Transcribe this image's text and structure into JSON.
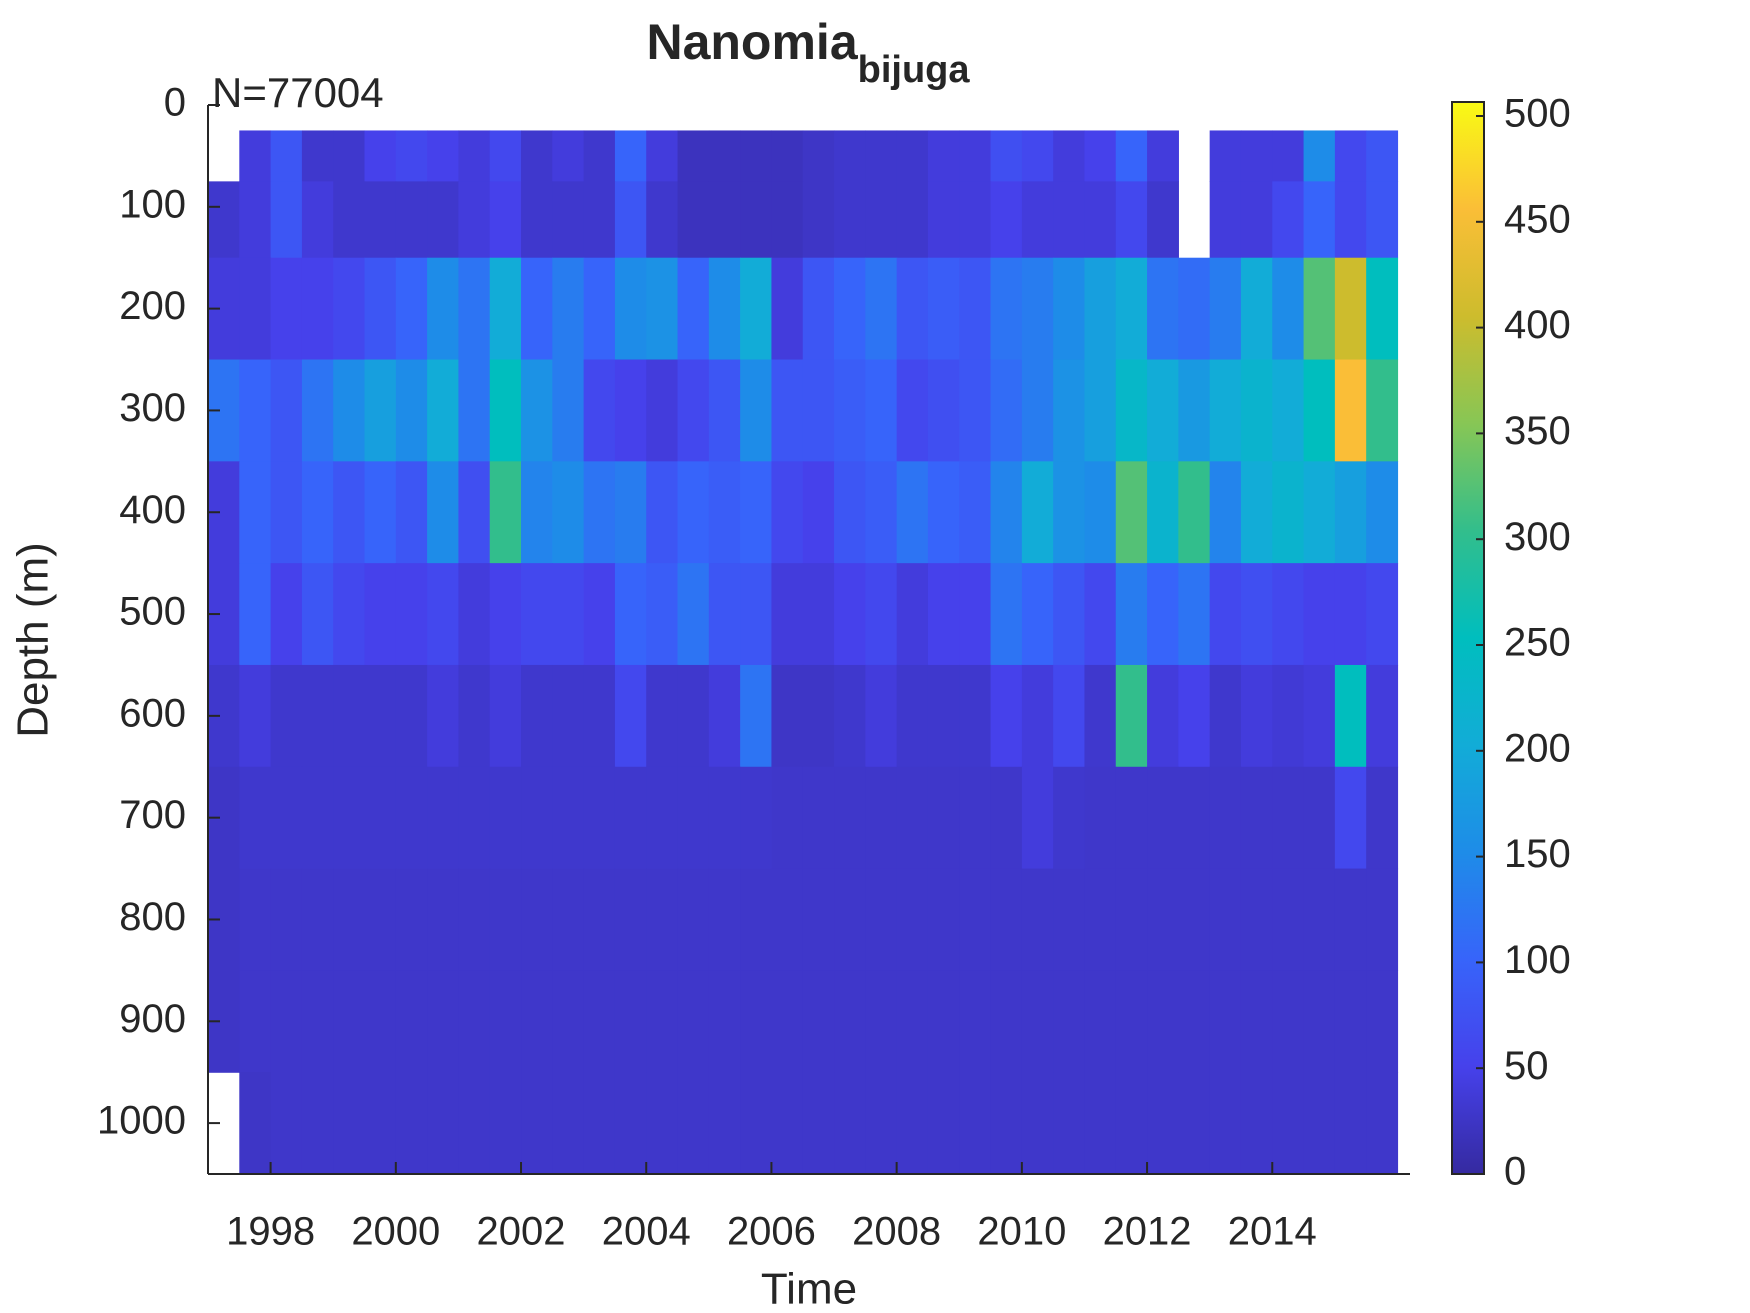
{
  "chart_data": {
    "type": "heatmap",
    "title": "Nanomia",
    "title_subscript": "bijuga",
    "annotation": "N=77004",
    "x_label": "Time",
    "y_label": "Depth (m)",
    "xlim": [
      1997,
      2016.2
    ],
    "xticks": [
      1998,
      2000,
      2002,
      2004,
      2006,
      2008,
      2010,
      2012,
      2014
    ],
    "ylim": [
      0,
      1050
    ],
    "yticks": [
      0,
      100,
      200,
      300,
      400,
      500,
      600,
      700,
      800,
      900,
      1000
    ],
    "y_reversed": true,
    "colormap": "parula",
    "clim": [
      0,
      500
    ],
    "cticks": [
      0,
      50,
      100,
      150,
      200,
      250,
      300,
      350,
      400,
      450,
      500
    ],
    "x_bins": [
      1997,
      1997.5,
      1998,
      1998.5,
      1999,
      1999.5,
      2000,
      2000.5,
      2001,
      2001.5,
      2002,
      2002.5,
      2003,
      2003.5,
      2004,
      2004.5,
      2005,
      2005.5,
      2006,
      2006.5,
      2007,
      2007.5,
      2008,
      2008.5,
      2009,
      2009.5,
      2010,
      2010.5,
      2011,
      2011.5,
      2012,
      2012.5,
      2013,
      2013.5,
      2014,
      2014.5,
      2015,
      2015.5,
      2016
    ],
    "y_bins": [
      25,
      75,
      150,
      250,
      350,
      450,
      550,
      650,
      750,
      850,
      950,
      1050
    ],
    "values": [
      [
        null,
        40,
        80,
        30,
        30,
        50,
        60,
        50,
        40,
        60,
        30,
        40,
        30,
        100,
        40,
        20,
        20,
        20,
        20,
        25,
        30,
        30,
        30,
        40,
        40,
        70,
        60,
        40,
        50,
        100,
        40,
        null,
        40,
        40,
        40,
        150,
        60,
        80
      ],
      [
        30,
        40,
        80,
        40,
        30,
        30,
        30,
        30,
        40,
        50,
        30,
        30,
        30,
        80,
        30,
        20,
        20,
        20,
        20,
        25,
        30,
        30,
        30,
        40,
        40,
        50,
        40,
        40,
        40,
        60,
        30,
        null,
        40,
        40,
        60,
        100,
        60,
        80
      ],
      [
        40,
        40,
        50,
        50,
        60,
        80,
        100,
        150,
        120,
        200,
        100,
        130,
        100,
        150,
        160,
        100,
        150,
        200,
        40,
        80,
        100,
        120,
        80,
        90,
        80,
        120,
        130,
        150,
        180,
        200,
        120,
        110,
        130,
        200,
        150,
        320,
        400,
        250
      ],
      [
        120,
        100,
        80,
        120,
        150,
        180,
        150,
        200,
        120,
        250,
        160,
        130,
        60,
        50,
        40,
        60,
        80,
        150,
        80,
        80,
        90,
        100,
        60,
        70,
        80,
        110,
        130,
        160,
        180,
        230,
        200,
        170,
        200,
        220,
        200,
        250,
        450,
        300
      ],
      [
        40,
        100,
        80,
        100,
        80,
        100,
        80,
        150,
        70,
        300,
        140,
        150,
        120,
        130,
        80,
        100,
        90,
        100,
        60,
        50,
        80,
        90,
        120,
        100,
        90,
        140,
        200,
        160,
        150,
        320,
        220,
        300,
        140,
        200,
        220,
        200,
        180,
        150
      ],
      [
        40,
        100,
        50,
        80,
        60,
        50,
        50,
        60,
        40,
        50,
        60,
        60,
        50,
        100,
        90,
        120,
        80,
        80,
        40,
        40,
        50,
        60,
        40,
        50,
        50,
        120,
        100,
        80,
        60,
        130,
        100,
        120,
        60,
        70,
        60,
        50,
        50,
        60
      ],
      [
        30,
        40,
        30,
        30,
        30,
        30,
        30,
        40,
        30,
        40,
        30,
        30,
        30,
        60,
        30,
        30,
        40,
        120,
        25,
        25,
        30,
        40,
        30,
        30,
        30,
        50,
        40,
        60,
        30,
        300,
        40,
        50,
        30,
        40,
        35,
        40,
        250,
        40
      ],
      [
        25,
        30,
        30,
        30,
        30,
        30,
        30,
        30,
        30,
        30,
        30,
        30,
        30,
        30,
        30,
        30,
        30,
        30,
        28,
        28,
        28,
        28,
        28,
        28,
        28,
        28,
        40,
        30,
        28,
        28,
        28,
        28,
        28,
        28,
        28,
        28,
        60,
        28
      ],
      [
        25,
        28,
        28,
        28,
        28,
        28,
        28,
        28,
        28,
        28,
        28,
        28,
        28,
        28,
        28,
        28,
        28,
        28,
        28,
        28,
        28,
        28,
        28,
        28,
        28,
        28,
        28,
        28,
        28,
        28,
        28,
        28,
        28,
        28,
        28,
        28,
        28,
        28
      ],
      [
        25,
        28,
        28,
        28,
        28,
        28,
        28,
        28,
        28,
        28,
        28,
        28,
        28,
        28,
        28,
        28,
        28,
        28,
        28,
        28,
        28,
        28,
        28,
        28,
        28,
        28,
        28,
        28,
        28,
        28,
        28,
        28,
        28,
        28,
        28,
        28,
        28,
        28
      ],
      [
        null,
        25,
        28,
        28,
        28,
        28,
        28,
        28,
        28,
        28,
        28,
        28,
        28,
        28,
        28,
        28,
        28,
        28,
        28,
        28,
        28,
        28,
        28,
        28,
        28,
        28,
        28,
        28,
        28,
        28,
        28,
        28,
        28,
        28,
        28,
        28,
        28,
        28
      ]
    ]
  }
}
